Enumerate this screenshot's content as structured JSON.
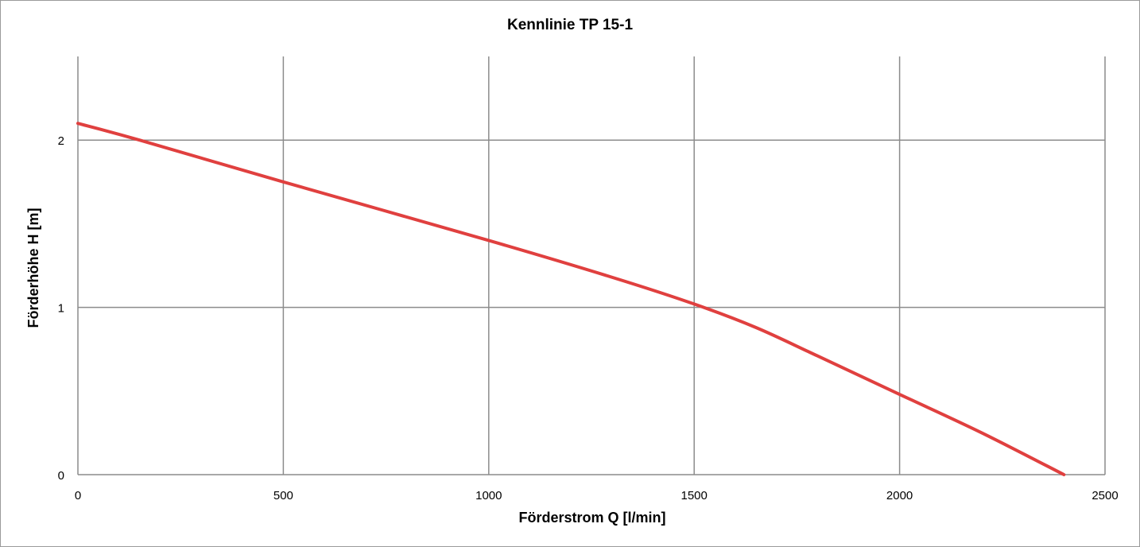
{
  "chart_data": {
    "type": "line",
    "title": "Kennlinie TP 15-1",
    "xlabel": "Förderstrom Q [l/min]",
    "ylabel": "Förderhöhe H [m]",
    "xlim": [
      0,
      2500
    ],
    "ylim": [
      0,
      2.5
    ],
    "xticks": [
      0,
      500,
      1000,
      1500,
      2000,
      2500
    ],
    "yticks": [
      0,
      1,
      2
    ],
    "grid": true,
    "legend": "none",
    "series": [
      {
        "color": "#e0403f",
        "x": [
          0,
          150,
          500,
          1000,
          1300,
          1500,
          1650,
          1800,
          2000,
          2200,
          2400
        ],
        "y": [
          2.1,
          2.0,
          1.75,
          1.4,
          1.18,
          1.02,
          0.88,
          0.71,
          0.48,
          0.25,
          0.0
        ]
      }
    ]
  }
}
